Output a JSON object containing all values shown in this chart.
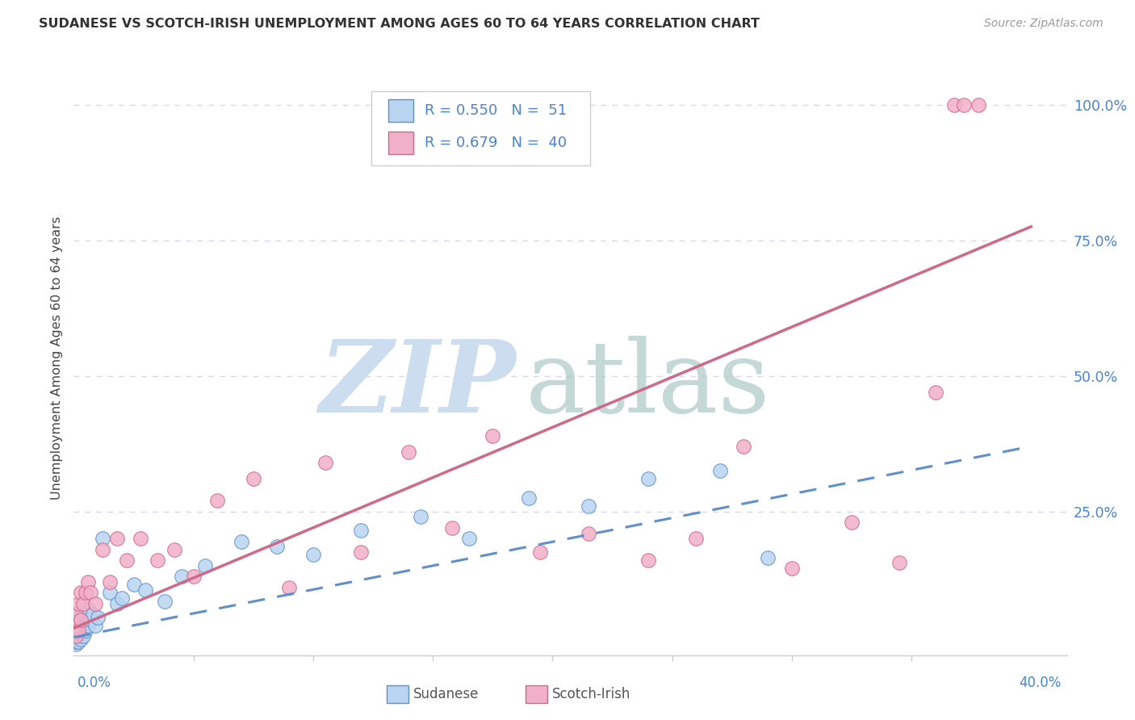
{
  "title": "SUDANESE VS SCOTCH-IRISH UNEMPLOYMENT AMONG AGES 60 TO 64 YEARS CORRELATION CHART",
  "source": "Source: ZipAtlas.com",
  "ylabel": "Unemployment Among Ages 60 to 64 years",
  "xlim": [
    0.0,
    0.415
  ],
  "ylim": [
    -0.015,
    1.08
  ],
  "yticks": [
    0.0,
    0.25,
    0.5,
    0.75,
    1.0
  ],
  "ytick_labels": [
    "",
    "25.0%",
    "50.0%",
    "75.0%",
    "100.0%"
  ],
  "xtick_label_left": "0.0%",
  "xtick_label_right": "40.0%",
  "color_sudanese_fill": "#b8d4f0",
  "color_sudanese_edge": "#6090cc",
  "color_scotch_fill": "#f0b0c8",
  "color_scotch_edge": "#d06888",
  "color_line_sudanese": "#6090cc",
  "color_line_scotch": "#d06888",
  "color_blue_text": "#4a82d8",
  "grid_color": "#d8d8e8",
  "background_color": "#ffffff",
  "sudanese_x": [
    0.001,
    0.001,
    0.001,
    0.001,
    0.001,
    0.001,
    0.001,
    0.001,
    0.001,
    0.001,
    0.002,
    0.002,
    0.002,
    0.002,
    0.002,
    0.002,
    0.003,
    0.003,
    0.003,
    0.003,
    0.004,
    0.004,
    0.004,
    0.005,
    0.005,
    0.006,
    0.006,
    0.007,
    0.008,
    0.009,
    0.01,
    0.012,
    0.015,
    0.018,
    0.02,
    0.025,
    0.03,
    0.038,
    0.045,
    0.055,
    0.07,
    0.085,
    0.1,
    0.12,
    0.145,
    0.165,
    0.19,
    0.215,
    0.24,
    0.27,
    0.29
  ],
  "sudanese_y": [
    0.005,
    0.01,
    0.015,
    0.02,
    0.025,
    0.03,
    0.035,
    0.04,
    0.045,
    0.05,
    0.01,
    0.02,
    0.03,
    0.04,
    0.05,
    0.06,
    0.015,
    0.025,
    0.035,
    0.055,
    0.02,
    0.04,
    0.06,
    0.03,
    0.05,
    0.04,
    0.07,
    0.05,
    0.06,
    0.04,
    0.055,
    0.2,
    0.1,
    0.08,
    0.09,
    0.115,
    0.105,
    0.085,
    0.13,
    0.15,
    0.195,
    0.185,
    0.17,
    0.215,
    0.24,
    0.2,
    0.275,
    0.26,
    0.31,
    0.325,
    0.165
  ],
  "scotch_x": [
    0.001,
    0.001,
    0.001,
    0.002,
    0.002,
    0.003,
    0.003,
    0.004,
    0.005,
    0.006,
    0.007,
    0.009,
    0.012,
    0.015,
    0.018,
    0.022,
    0.028,
    0.035,
    0.042,
    0.05,
    0.06,
    0.075,
    0.09,
    0.105,
    0.12,
    0.14,
    0.158,
    0.175,
    0.195,
    0.215,
    0.24,
    0.26,
    0.28,
    0.3,
    0.325,
    0.345,
    0.36,
    0.368,
    0.372,
    0.378
  ],
  "scotch_y": [
    0.02,
    0.04,
    0.06,
    0.03,
    0.08,
    0.05,
    0.1,
    0.08,
    0.1,
    0.12,
    0.1,
    0.08,
    0.18,
    0.12,
    0.2,
    0.16,
    0.2,
    0.16,
    0.18,
    0.13,
    0.27,
    0.31,
    0.11,
    0.34,
    0.175,
    0.36,
    0.22,
    0.39,
    0.175,
    0.21,
    0.16,
    0.2,
    0.37,
    0.145,
    0.23,
    0.155,
    0.47,
    1.0,
    1.0,
    1.0
  ],
  "line_sudanese_x0": 0.0,
  "line_sudanese_y0": 0.018,
  "line_sudanese_x1": 0.4,
  "line_sudanese_y1": 0.37,
  "line_scotch_x0": 0.0,
  "line_scotch_y0": 0.035,
  "line_scotch_x1": 0.4,
  "line_scotch_y1": 0.775,
  "R_sudanese": "0.550",
  "N_sudanese": " 51",
  "R_scotch": "0.679",
  "N_scotch": " 40"
}
